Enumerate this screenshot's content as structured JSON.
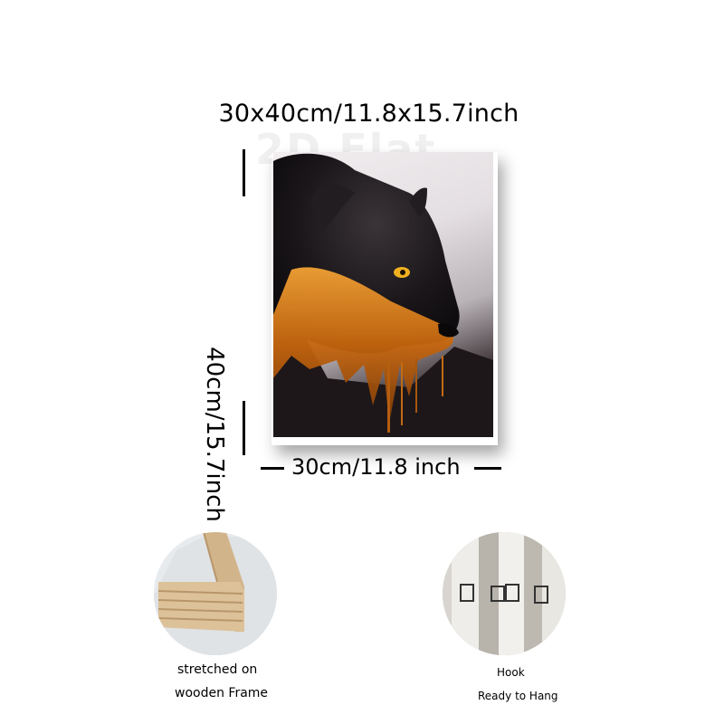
{
  "dimensions": {
    "overall": "30x40cm/11.8x15.7inch",
    "height": "40cm/15.7inch",
    "width": "30cm/11.8 inch",
    "watermark": "2D Flat"
  },
  "features": [
    {
      "label": "stretched on",
      "label_line2": "wooden Frame"
    },
    {
      "label": "Hook",
      "label_line2": "Ready to Hang"
    }
  ],
  "colors": {
    "panther": "#141114",
    "gold": "#e08a1c",
    "eye": "#f0b020",
    "wood": "#d7b98f"
  }
}
